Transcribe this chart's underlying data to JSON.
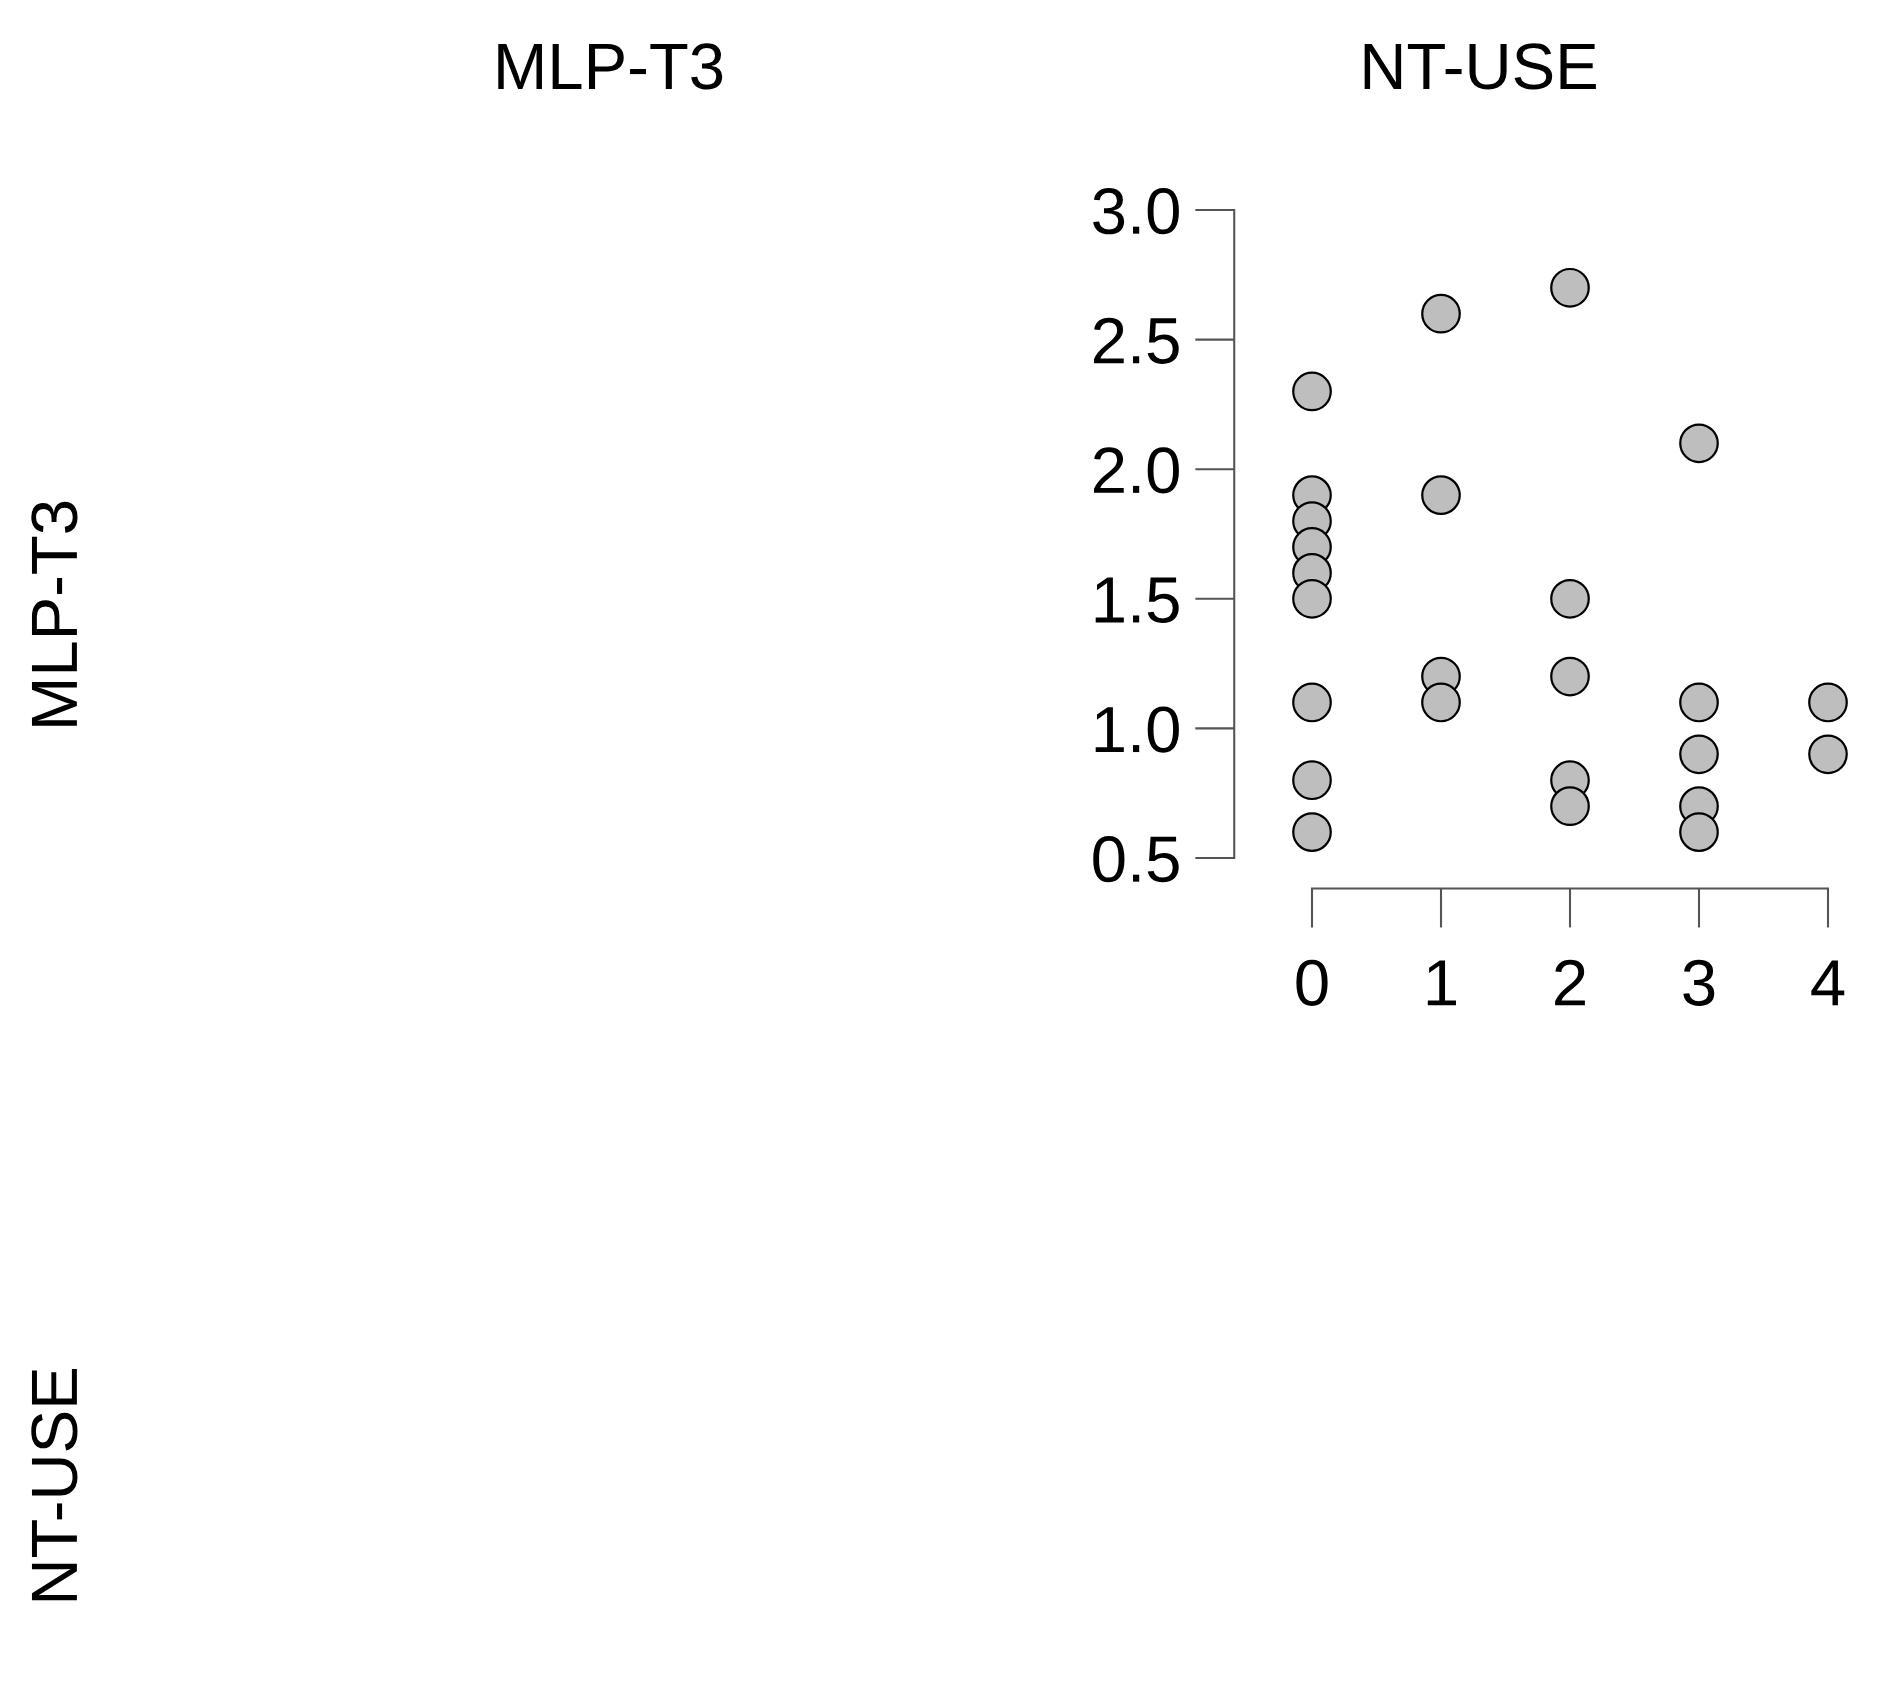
{
  "chart_data": {
    "type": "scatter",
    "title": "NT-USE",
    "annotations": [
      "MLP-T3",
      "MLP-T3",
      "NT-USE"
    ],
    "series": [
      {
        "color": "#bebebe",
        "x": [
          0,
          0,
          0,
          0,
          0,
          0,
          0,
          0,
          0,
          1,
          1,
          1,
          1,
          2,
          2,
          2,
          2,
          2,
          3,
          3,
          3,
          3,
          3,
          4,
          4
        ],
        "values": [
          2.3,
          1.9,
          1.8,
          1.7,
          1.6,
          1.5,
          1.1,
          0.8,
          0.6,
          2.6,
          1.9,
          1.2,
          1.1,
          2.7,
          1.5,
          1.2,
          0.8,
          0.7,
          2.1,
          1.1,
          0.9,
          0.7,
          0.6,
          1.1,
          0.9
        ]
      }
    ],
    "xlim": [
      0,
      4
    ],
    "xticks": [
      0,
      1,
      2,
      3,
      4
    ],
    "ylim": [
      0.5,
      3.0
    ],
    "yticks": [
      {
        "value": 0.5,
        "label": "0.5"
      },
      {
        "value": 1.0,
        "label": "1.0"
      },
      {
        "value": 1.5,
        "label": "1.5"
      },
      {
        "value": 2.0,
        "label": "2.0"
      },
      {
        "value": 2.5,
        "label": "2.5"
      },
      {
        "value": 3.0,
        "label": "3.0"
      }
    ],
    "marker": "circle",
    "grid": false,
    "legend": false
  }
}
